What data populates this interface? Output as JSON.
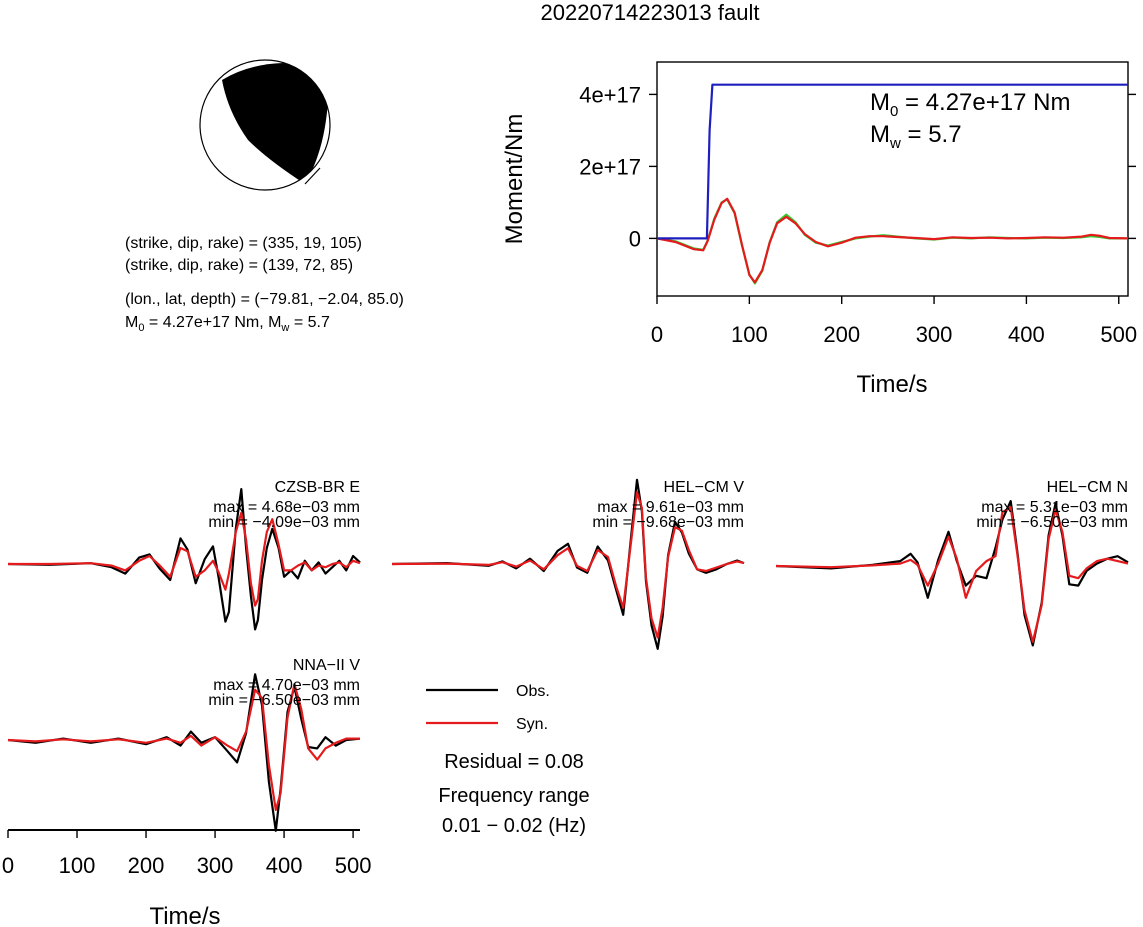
{
  "title": "20220714223013 fault",
  "colors": {
    "observed": "#000000",
    "synthetic": "#e41a1c",
    "moment": "#1f1fbf",
    "stf_green": "#33cc33",
    "stf_red": "#e41a1c"
  },
  "beachball": {
    "name": "focal-mechanism",
    "np1": {
      "strike": 335,
      "dip": 19,
      "rake": 105
    },
    "np2": {
      "strike": 139,
      "dip": 72,
      "rake": 85
    }
  },
  "info": {
    "line1": "(strike, dip, rake) = (335, 19, 105)",
    "line2": "(strike, dip, rake) = (139, 72, 85)",
    "line3": "(lon., lat, depth) = (−79.81, −2.04, 85.0)",
    "m0_label": "M",
    "m0_sub": "0",
    "m0_value": " = 4.27e+17 Nm, M",
    "mw_sub": "w",
    "mw_value": " = 5.7"
  },
  "moment_annotation": {
    "m0_label": "M",
    "m0_sub": "0",
    "m0_value": " = 4.27e+17 Nm",
    "mw_label": "M",
    "mw_sub": "w",
    "mw_value": " = 5.7"
  },
  "legend": {
    "obs_label": "Obs.",
    "syn_label": "Syn.",
    "residual": "Residual = 0.08",
    "freq_title": "Frequency range",
    "freq_value": "0.01 − 0.02 (Hz)"
  },
  "chart_data": [
    {
      "type": "line",
      "name": "moment-chart",
      "xlabel": "Time/s",
      "ylabel": "Moment/Nm",
      "xlim": [
        0,
        510
      ],
      "ylim": [
        -1.6e+17,
        4.9e+17
      ],
      "xticks": [
        0,
        100,
        200,
        300,
        400,
        500
      ],
      "xtick_labels": [
        "0",
        "100",
        "200",
        "300",
        "400",
        "500"
      ],
      "yticks": [
        0,
        2e+17,
        4e+17
      ],
      "ytick_labels": [
        "0",
        "2e+17",
        "4e+17"
      ],
      "series": [
        {
          "role": "cumulative-moment",
          "color": "#1f1fbf",
          "x": [
            0,
            54,
            57,
            60,
            510
          ],
          "y": [
            0,
            0,
            3e+17,
            4.27e+17,
            4.27e+17
          ]
        },
        {
          "role": "moment-rate-green",
          "color": "#33cc33",
          "x": [
            0,
            20,
            40,
            50,
            55,
            62,
            70,
            76,
            84,
            92,
            100,
            106,
            114,
            122,
            130,
            140,
            150,
            160,
            172,
            185,
            200,
            215,
            230,
            245,
            260,
            280,
            300,
            320,
            340,
            360,
            380,
            400,
            420,
            440,
            460,
            470,
            480,
            490,
            510
          ],
          "y": [
            0,
            -8000000000000000.0,
            -2.8e+16,
            -3.2e+16,
            -5000000000000000.0,
            5.5e+16,
            1e+17,
            1.08e+17,
            7e+16,
            -2e+16,
            -1e+17,
            -1.25e+17,
            -9e+16,
            -1e+16,
            4.5e+16,
            6.6e+16,
            4.5e+16,
            1e+16,
            -1.2e+16,
            -2e+16,
            -1e+16,
            0.0,
            5000000000000000.0,
            9000000000000000.0,
            5000000000000000.0,
            0.0,
            -3000000000000000.0,
            2000000000000000.0,
            0.0,
            3000000000000000.0,
            1000000000000000.0,
            0.0,
            2000000000000000.0,
            1000000000000000.0,
            3000000000000000.0,
            6000000000000000.0,
            4000000000000000.0,
            0.0,
            0.0
          ]
        },
        {
          "role": "moment-rate-red",
          "color": "#e41a1c",
          "x": [
            0,
            20,
            40,
            50,
            55,
            62,
            70,
            76,
            84,
            92,
            100,
            106,
            114,
            122,
            130,
            140,
            150,
            160,
            172,
            185,
            200,
            215,
            230,
            245,
            260,
            280,
            300,
            320,
            340,
            360,
            380,
            400,
            420,
            440,
            460,
            470,
            480,
            490,
            510
          ],
          "y": [
            0,
            -1e+16,
            -3e+16,
            -3.3e+16,
            -6000000000000000.0,
            5.2e+16,
            9.8e+16,
            1.1e+17,
            7.2e+16,
            -1.8e+16,
            -1.02e+17,
            -1.22e+17,
            -8.8e+16,
            -1.2e+16,
            4.2e+16,
            6e+16,
            4.2e+16,
            1.2e+16,
            -1e+16,
            -2.2e+16,
            -1.2e+16,
            2000000000000000.0,
            6000000000000000.0,
            6000000000000000.0,
            4000000000000000.0,
            1000000000000000.0,
            -2000000000000000.0,
            3000000000000000.0,
            1000000000000000.0,
            2000000000000000.0,
            0.0,
            1000000000000000.0,
            3000000000000000.0,
            2000000000000000.0,
            5000000000000000.0,
            1e+16,
            7000000000000000.0,
            1000000000000000.0,
            0.0
          ]
        }
      ]
    },
    {
      "type": "line",
      "name": "waveform-CZSB-BR-E",
      "station": "CZSB-BR E",
      "max_label": "max = 4.68e−03 mm",
      "min_label": "min = −4.09e−03 mm",
      "xlim": [
        0,
        510
      ],
      "ylim": [
        -0.0055,
        0.0055
      ],
      "series": [
        {
          "role": "observed",
          "x": [
            0,
            60,
            120,
            150,
            170,
            190,
            205,
            220,
            235,
            250,
            260,
            272,
            285,
            297,
            305,
            315,
            320,
            330,
            338,
            345,
            352,
            358,
            362,
            368,
            375,
            383,
            392,
            400,
            410,
            420,
            430,
            440,
            450,
            460,
            470,
            480,
            490,
            500,
            510
          ],
          "y": [
            0,
            -5e-05,
            5e-05,
            -0.0002,
            -0.0006,
            0.0004,
            0.0006,
            -0.0003,
            -0.001,
            0.0016,
            0.0009,
            -0.0012,
            0.0003,
            0.0011,
            -0.0008,
            -0.0036,
            -0.003,
            0.0022,
            0.00468,
            0.001,
            -0.002,
            -0.00409,
            -0.0035,
            -0.001,
            0.001,
            0.0022,
            0.001,
            -0.0008,
            -0.0004,
            -0.0009,
            0.0002,
            -0.0004,
            0.0001,
            -0.0006,
            -0.0002,
            0.0002,
            -0.0004,
            0.0005,
            0.0001
          ]
        },
        {
          "role": "synthetic",
          "x": [
            0,
            60,
            120,
            150,
            170,
            190,
            205,
            220,
            235,
            250,
            260,
            272,
            285,
            297,
            305,
            315,
            320,
            330,
            338,
            345,
            352,
            358,
            362,
            368,
            375,
            383,
            392,
            400,
            410,
            420,
            430,
            440,
            450,
            460,
            470,
            480,
            490,
            500,
            510
          ],
          "y": [
            0,
            0.0,
            5e-05,
            -0.0001,
            -0.0004,
            0.0002,
            0.0005,
            -0.0001,
            -0.0008,
            0.001,
            0.0008,
            -0.0008,
            -0.0004,
            0.0002,
            -0.0005,
            -0.0016,
            -0.0006,
            0.002,
            0.0032,
            0.0015,
            -0.0012,
            -0.0026,
            -0.0022,
            0.0002,
            0.002,
            0.0028,
            0.0012,
            -0.0004,
            -0.0004,
            -0.0001,
            0.0001,
            -0.0004,
            -0.0001,
            -0.0002,
            0.0,
            0.0001,
            -0.0002,
            0.0002,
            5e-05
          ]
        }
      ]
    },
    {
      "type": "line",
      "name": "waveform-HEL-CM-V",
      "station": "HEL−CM V",
      "max_label": "max = 9.61e−03 mm",
      "min_label": "min = −9.68e−03 mm",
      "xlim": [
        0,
        510
      ],
      "ylim": [
        -0.0105,
        0.0105
      ],
      "series": [
        {
          "role": "observed",
          "x": [
            0,
            80,
            140,
            160,
            180,
            200,
            220,
            240,
            255,
            268,
            283,
            298,
            313,
            325,
            335,
            345,
            355,
            362,
            368,
            376,
            385,
            392,
            400,
            410,
            420,
            430,
            442,
            455,
            470,
            485,
            500,
            510
          ],
          "y": [
            0,
            0.0001,
            -0.0002,
            0.0003,
            -0.0005,
            0.0006,
            -0.0008,
            0.0015,
            0.0023,
            -0.0004,
            -0.001,
            0.002,
            0.0004,
            -0.003,
            -0.0058,
            0.002,
            0.00961,
            0.006,
            -0.002,
            -0.007,
            -0.00968,
            -0.006,
            0.001,
            0.0048,
            0.0036,
            0.0012,
            -0.0006,
            -0.001,
            -0.0006,
            0.0,
            0.0004,
            0.0001
          ]
        },
        {
          "role": "synthetic",
          "x": [
            0,
            80,
            140,
            160,
            180,
            200,
            220,
            240,
            255,
            268,
            283,
            298,
            313,
            325,
            335,
            345,
            355,
            362,
            368,
            376,
            385,
            392,
            400,
            410,
            420,
            430,
            442,
            455,
            470,
            485,
            500,
            510
          ],
          "y": [
            0,
            5e-05,
            -0.0001,
            0.0002,
            -0.0003,
            0.0004,
            -0.0006,
            0.001,
            0.0018,
            -0.0002,
            -0.0008,
            0.0016,
            0.0008,
            -0.0026,
            -0.005,
            0.0016,
            0.0082,
            0.0064,
            -0.0016,
            -0.0062,
            -0.0084,
            -0.005,
            0.0008,
            0.0042,
            0.0038,
            0.0016,
            -0.0006,
            -0.0008,
            -0.0004,
            0.0,
            0.0003,
            0.0001
          ]
        }
      ]
    },
    {
      "type": "line",
      "name": "waveform-HEL-CM-N",
      "station": "HEL−CM N",
      "max_label": "max = 5.31e−03 mm",
      "min_label": "min = −6.50e−03 mm",
      "xlim": [
        0,
        510
      ],
      "ylim": [
        -0.0072,
        0.0072
      ],
      "series": [
        {
          "role": "observed",
          "x": [
            0,
            80,
            140,
            180,
            195,
            205,
            220,
            235,
            250,
            262,
            275,
            290,
            305,
            318,
            328,
            340,
            350,
            360,
            372,
            385,
            395,
            405,
            415,
            425,
            438,
            450,
            465,
            480,
            495,
            510
          ],
          "y": [
            0,
            -0.0002,
            0.0001,
            0.0004,
            0.001,
            0.0003,
            -0.0026,
            0.0005,
            0.0028,
            0.0004,
            -0.0016,
            -0.0008,
            -0.001,
            0.0015,
            0.0038,
            0.00531,
            0.001,
            -0.004,
            -0.0065,
            -0.003,
            0.0025,
            0.0051,
            0.0025,
            -0.0015,
            -0.0016,
            -0.0004,
            0.0002,
            0.0006,
            0.0008,
            0.0003
          ]
        },
        {
          "role": "synthetic",
          "x": [
            0,
            80,
            140,
            180,
            195,
            205,
            220,
            235,
            250,
            262,
            275,
            290,
            305,
            318,
            328,
            340,
            350,
            360,
            372,
            385,
            395,
            405,
            415,
            425,
            438,
            450,
            465,
            480,
            495,
            510
          ],
          "y": [
            0,
            -0.0001,
            5e-05,
            0.0002,
            0.0005,
            0.0001,
            -0.0016,
            0.0002,
            0.0024,
            0.0006,
            -0.0026,
            -0.0004,
            0.0004,
            0.0008,
            0.0044,
            0.0048,
            0.0008,
            -0.0036,
            -0.0062,
            -0.0032,
            0.0022,
            0.0046,
            0.0028,
            -0.0008,
            -0.001,
            -0.0002,
            0.0004,
            0.0006,
            0.0004,
            0.0002
          ]
        }
      ]
    },
    {
      "type": "line",
      "name": "waveform-NNA-II-V",
      "station": "NNA−II V",
      "max_label": "max = 4.70e−03 mm",
      "min_label": "min = −6.50e−03 mm",
      "xlabel": "Time/s",
      "xlim": [
        0,
        510
      ],
      "ylim": [
        -0.0068,
        0.0068
      ],
      "xticks": [
        0,
        100,
        200,
        300,
        400,
        500
      ],
      "xtick_labels": [
        "0",
        "100",
        "200",
        "300",
        "400",
        "500"
      ],
      "series": [
        {
          "role": "observed",
          "x": [
            0,
            40,
            80,
            120,
            160,
            200,
            230,
            250,
            265,
            280,
            300,
            318,
            332,
            345,
            358,
            368,
            378,
            388,
            395,
            405,
            415,
            425,
            435,
            448,
            460,
            475,
            490,
            510
          ],
          "y": [
            0,
            -0.0002,
            0.0001,
            -0.0002,
            0.0001,
            -0.0003,
            0.0002,
            -0.0004,
            0.0006,
            -0.0002,
            0.0002,
            -0.0008,
            -0.0016,
            0.0005,
            0.0047,
            0.0025,
            -0.003,
            -0.0065,
            -0.0035,
            0.002,
            0.0038,
            0.0015,
            -0.0005,
            -0.0006,
            0.0002,
            -0.0004,
            0.0,
            0.0001
          ]
        },
        {
          "role": "synthetic",
          "x": [
            0,
            40,
            80,
            120,
            160,
            200,
            230,
            250,
            265,
            280,
            300,
            318,
            332,
            345,
            358,
            368,
            378,
            388,
            395,
            405,
            415,
            425,
            435,
            448,
            460,
            475,
            490,
            510
          ],
          "y": [
            0,
            -0.0001,
            5e-05,
            -0.0001,
            5e-05,
            -0.0002,
            0.0001,
            -0.0002,
            0.0003,
            -0.0004,
            0.0002,
            -0.0004,
            -0.0008,
            0.0006,
            0.0036,
            0.003,
            -0.0018,
            -0.005,
            -0.0038,
            0.0016,
            0.004,
            0.0022,
            -0.0006,
            -0.0014,
            -0.0006,
            -0.0002,
            0.0001,
            0.0001
          ]
        }
      ]
    }
  ]
}
